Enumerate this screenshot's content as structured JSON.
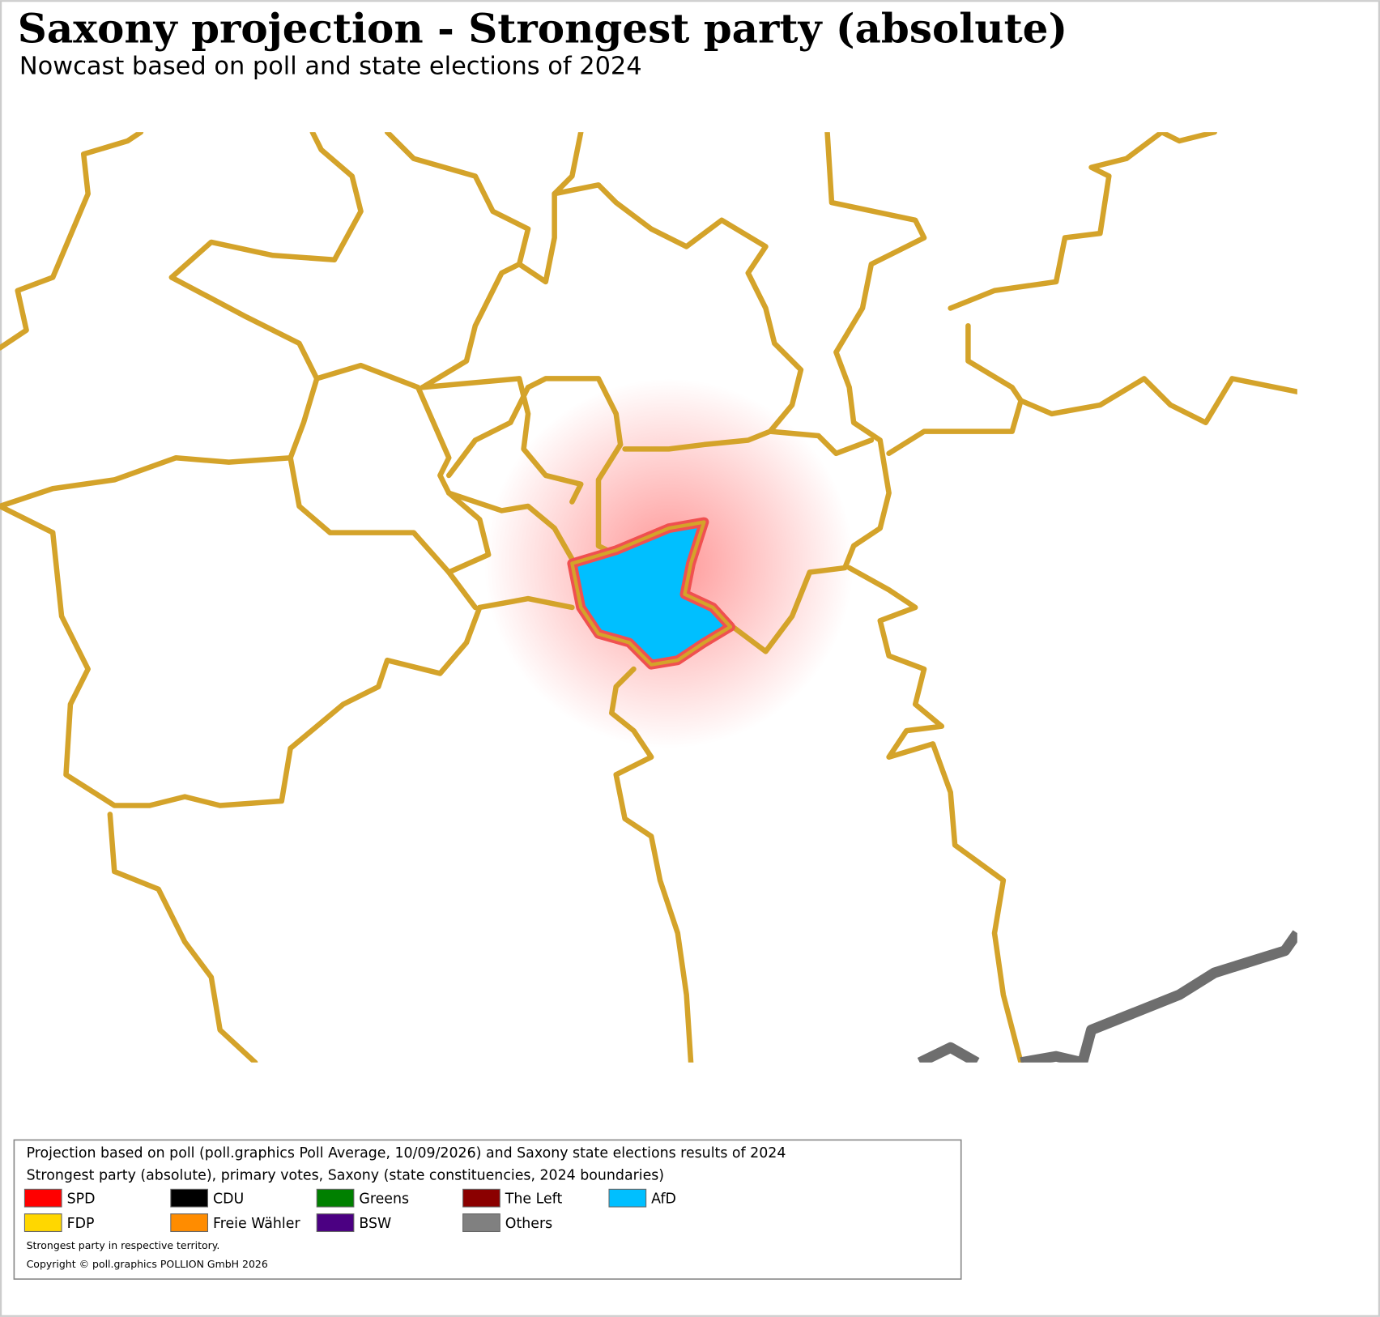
{
  "header": {
    "title": "Saxony projection - Strongest party (absolute)",
    "subtitle": "Nowcast based on poll and state elections of 2024"
  },
  "legend": {
    "lines": [
      "Projection based on poll (poll.graphics Poll Average, 10/09/2026) and Saxony state elections results of 2024",
      "Strongest party (absolute), primary votes, Saxony (state constituencies, 2024 boundaries)"
    ],
    "items": [
      {
        "name": "SPD",
        "color": "#ff0000"
      },
      {
        "name": "CDU",
        "color": "#000000"
      },
      {
        "name": "Greens",
        "color": "#008000"
      },
      {
        "name": "The Left",
        "color": "#8b0000"
      },
      {
        "name": "AfD",
        "color": "#00bfff"
      },
      {
        "name": "FDP",
        "color": "#ffd700"
      },
      {
        "name": "Freie Wähler",
        "color": "#ff8c00"
      },
      {
        "name": "BSW",
        "color": "#4b0082"
      },
      {
        "name": "Others",
        "color": "#808080"
      }
    ],
    "notes": [
      "Strongest party in respective territory.",
      "Copyright © poll.graphics POLLION GmbH 2026"
    ]
  }
}
